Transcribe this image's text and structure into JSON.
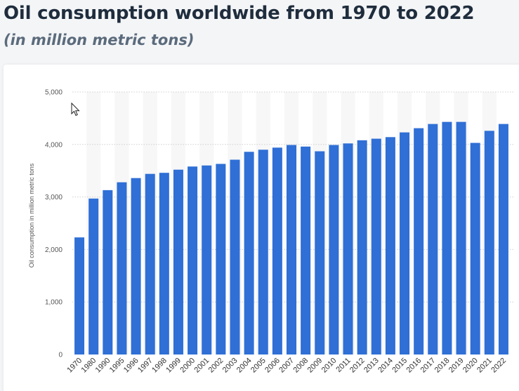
{
  "page": {
    "title": "Oil consumption worldwide from 1970 to 2022",
    "subtitle": "(in million metric tons)"
  },
  "chart_data": {
    "type": "bar",
    "title": "Oil consumption worldwide from 1970 to 2022",
    "subtitle": "(in million metric tons)",
    "xlabel": "",
    "ylabel": "Oil consumption in million metric tons",
    "ylim": [
      0,
      5000
    ],
    "yticks": [
      0,
      1000,
      2000,
      3000,
      4000,
      5000
    ],
    "ytick_labels": [
      "0",
      "1,000",
      "2,000",
      "3,000",
      "4,000",
      "5,000"
    ],
    "grid": true,
    "legend": "none",
    "bar_color": "#2f6fd6",
    "categories": [
      "1970",
      "1980",
      "1990",
      "1995",
      "1996",
      "1997",
      "1998",
      "1999",
      "2000",
      "2001",
      "2002",
      "2003",
      "2004",
      "2005",
      "2006",
      "2007",
      "2008",
      "2009",
      "2010",
      "2011",
      "2012",
      "2013",
      "2014",
      "2015",
      "2016",
      "2017",
      "2018",
      "2019",
      "2020",
      "2021",
      "2022"
    ],
    "values": [
      2230,
      2970,
      3130,
      3280,
      3360,
      3440,
      3460,
      3520,
      3580,
      3600,
      3630,
      3710,
      3860,
      3900,
      3940,
      3990,
      3960,
      3870,
      3990,
      4020,
      4080,
      4110,
      4140,
      4230,
      4310,
      4390,
      4430,
      4430,
      4030,
      4260,
      4390
    ]
  }
}
